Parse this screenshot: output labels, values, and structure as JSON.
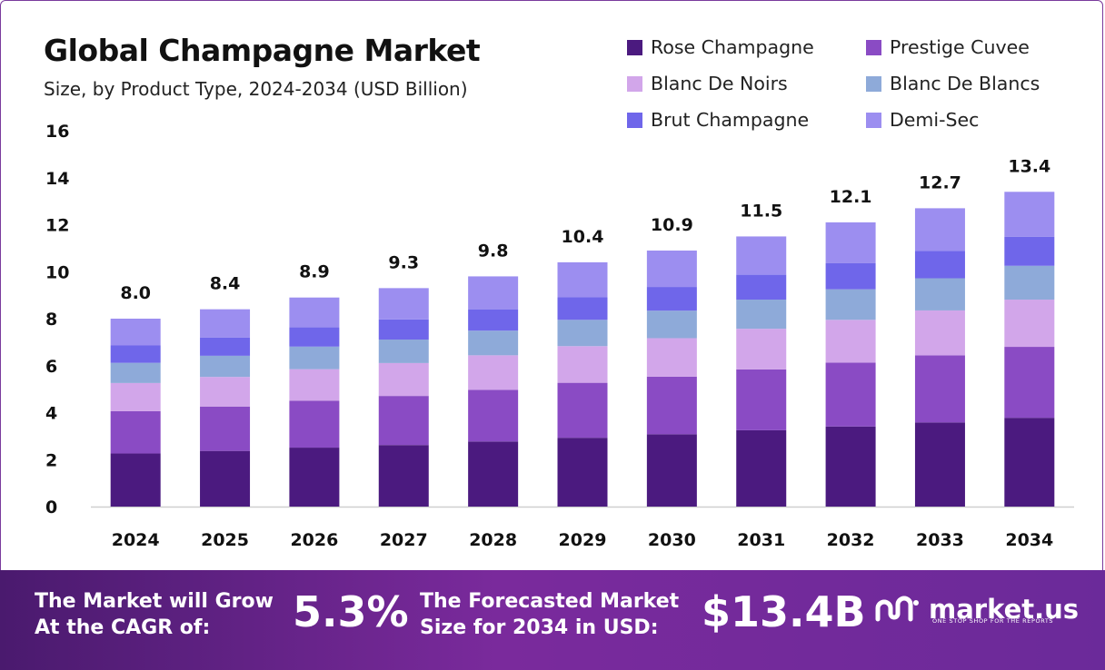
{
  "header": {
    "title": "Global Champagne Market",
    "subtitle": "Size, by Product Type, 2024-2034 (USD Billion)"
  },
  "chart_data": {
    "type": "bar",
    "stacked": true,
    "categories": [
      "2024",
      "2025",
      "2026",
      "2027",
      "2028",
      "2029",
      "2030",
      "2031",
      "2032",
      "2033",
      "2034"
    ],
    "ylim": [
      0,
      16
    ],
    "yticks": [
      0,
      2,
      4,
      6,
      8,
      10,
      12,
      14,
      16
    ],
    "totals": [
      "8.0",
      "8.4",
      "8.9",
      "9.3",
      "9.8",
      "10.4",
      "10.9",
      "11.5",
      "12.1",
      "12.7",
      "13.4"
    ],
    "legend_position": "top-right",
    "series": [
      {
        "name": "Rose Champagne",
        "color": "#4b1a7f",
        "values": [
          2.26,
          2.37,
          2.51,
          2.62,
          2.77,
          2.93,
          3.08,
          3.25,
          3.41,
          3.58,
          3.78
        ]
      },
      {
        "name": "Prestige Cuvee",
        "color": "#8a4bc4",
        "values": [
          1.8,
          1.89,
          2.0,
          2.09,
          2.2,
          2.34,
          2.45,
          2.59,
          2.72,
          2.86,
          3.02
        ]
      },
      {
        "name": "Blanc De Noirs",
        "color": "#d2a6ea",
        "values": [
          1.2,
          1.26,
          1.34,
          1.4,
          1.47,
          1.56,
          1.64,
          1.73,
          1.82,
          1.91,
          2.01
        ]
      },
      {
        "name": "Blanc De Blancs",
        "color": "#8eaad9",
        "values": [
          0.86,
          0.9,
          0.96,
          1.0,
          1.05,
          1.12,
          1.17,
          1.24,
          1.3,
          1.37,
          1.44
        ]
      },
      {
        "name": "Brut Champagne",
        "color": "#6f66ea",
        "values": [
          0.74,
          0.78,
          0.82,
          0.86,
          0.91,
          0.96,
          1.01,
          1.06,
          1.12,
          1.17,
          1.24
        ]
      },
      {
        "name": "Demi-Sec",
        "color": "#9c8ef0",
        "values": [
          1.14,
          1.2,
          1.27,
          1.33,
          1.4,
          1.49,
          1.55,
          1.63,
          1.73,
          1.81,
          1.91
        ]
      }
    ]
  },
  "footer": {
    "cagr_label_line1": "The Market will Grow",
    "cagr_label_line2": "At the CAGR of:",
    "cagr_value": "5.3%",
    "forecast_label_line1": "The Forecasted Market",
    "forecast_label_line2": "Size for 2034 in USD:",
    "forecast_value": "$13.4B",
    "brand_name": "market.us",
    "brand_tagline": "ONE STOP SHOP FOR THE REPORTS"
  }
}
